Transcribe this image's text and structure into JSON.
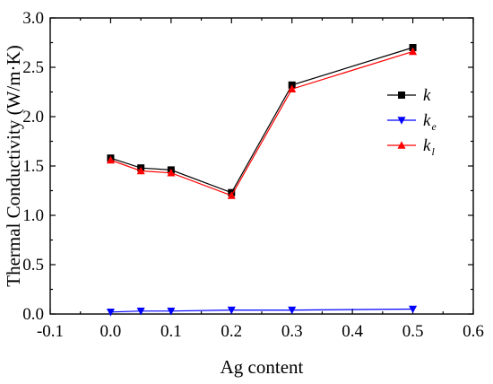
{
  "chart_data": {
    "type": "line",
    "xlabel": "Ag content",
    "ylabel": "Thermal Conductivity (W/m·K)",
    "xlim": [
      -0.1,
      0.6
    ],
    "ylim": [
      0.0,
      3.0
    ],
    "xticks": [
      "-0.1",
      "0.0",
      "0.1",
      "0.2",
      "0.3",
      "0.4",
      "0.5",
      "0.6"
    ],
    "yticks": [
      "0.0",
      "0.5",
      "1.0",
      "1.5",
      "2.0",
      "2.5",
      "3.0"
    ],
    "x": [
      0.0,
      0.05,
      0.1,
      0.2,
      0.3,
      0.5
    ],
    "legend_position": "right",
    "grid": false,
    "series": [
      {
        "key": "k",
        "name": "k",
        "sub": "",
        "color": "#000000",
        "marker": "square",
        "values": [
          1.58,
          1.48,
          1.46,
          1.23,
          2.32,
          2.7
        ]
      },
      {
        "key": "ke",
        "name": "k",
        "sub": "e",
        "color": "#0000ff",
        "marker": "triangle-down",
        "values": [
          0.02,
          0.03,
          0.03,
          0.04,
          0.04,
          0.05
        ]
      },
      {
        "key": "kl",
        "name": "k",
        "sub": "l",
        "color": "#ff0000",
        "marker": "triangle-up",
        "values": [
          1.56,
          1.45,
          1.43,
          1.2,
          2.28,
          2.66
        ]
      }
    ]
  }
}
